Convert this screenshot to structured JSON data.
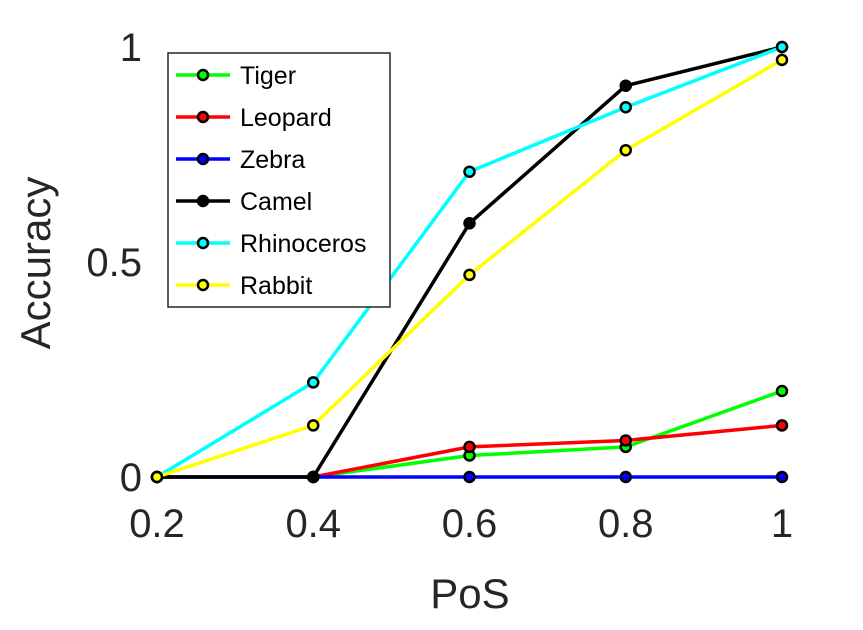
{
  "chart_data": {
    "type": "line",
    "title": "",
    "xlabel": "PoS",
    "ylabel": "Accuracy",
    "x": [
      0.2,
      0.4,
      0.6,
      0.8,
      1
    ],
    "xlim": [
      0.2,
      1
    ],
    "ylim": [
      0,
      1
    ],
    "xticks": [
      "0.2",
      "0.4",
      "0.6",
      "0.8",
      "1"
    ],
    "yticks": [
      "0",
      "0.5",
      "1"
    ],
    "grid": false,
    "legend_position": "top-left",
    "series": [
      {
        "name": "Tiger",
        "color": "#00ff00",
        "values": [
          0,
          0,
          0.05,
          0.07,
          0.2
        ]
      },
      {
        "name": "Leopard",
        "color": "#ff0000",
        "values": [
          0,
          0,
          0.07,
          0.085,
          0.12
        ]
      },
      {
        "name": "Zebra",
        "color": "#0000ff",
        "values": [
          0,
          0,
          0,
          0,
          0
        ]
      },
      {
        "name": "Camel",
        "color": "#000000",
        "values": [
          0,
          0,
          0.59,
          0.91,
          1
        ]
      },
      {
        "name": "Rhinoceros",
        "color": "#00ffff",
        "values": [
          0,
          0.22,
          0.71,
          0.86,
          1
        ]
      },
      {
        "name": "Rabbit",
        "color": "#ffff00",
        "values": [
          0,
          0.12,
          0.47,
          0.76,
          0.97
        ]
      }
    ]
  }
}
